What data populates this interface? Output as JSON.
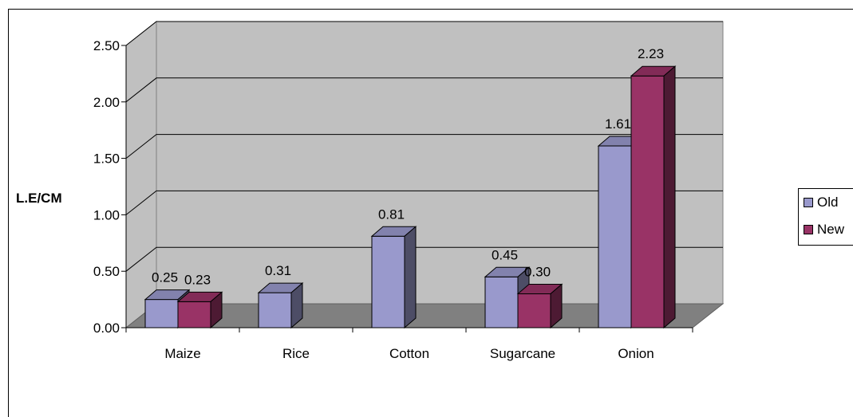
{
  "chart_data": {
    "type": "bar",
    "ylabel": "L.E/CM",
    "categories": [
      "Maize",
      "Rice",
      "Cotton",
      "Sugarcane",
      "Onion"
    ],
    "ylim": [
      0,
      2.5
    ],
    "yticks": [
      "0.00",
      "0.50",
      "1.00",
      "1.50",
      "2.00",
      "2.50"
    ],
    "ytick_values": [
      0,
      0.5,
      1.0,
      1.5,
      2.0,
      2.5
    ],
    "grid": true,
    "legend_position": "right",
    "series": [
      {
        "name": "Old",
        "color": "#9999CC",
        "values": [
          0.25,
          0.31,
          0.81,
          0.45,
          1.61
        ],
        "labels": [
          "0.25",
          "0.31",
          "0.81",
          "0.45",
          "1.61"
        ]
      },
      {
        "name": "New",
        "color": "#993366",
        "values": [
          0.23,
          null,
          null,
          0.3,
          2.23
        ],
        "labels": [
          "0.23",
          "",
          "",
          "0.30",
          "2.23"
        ]
      }
    ]
  }
}
